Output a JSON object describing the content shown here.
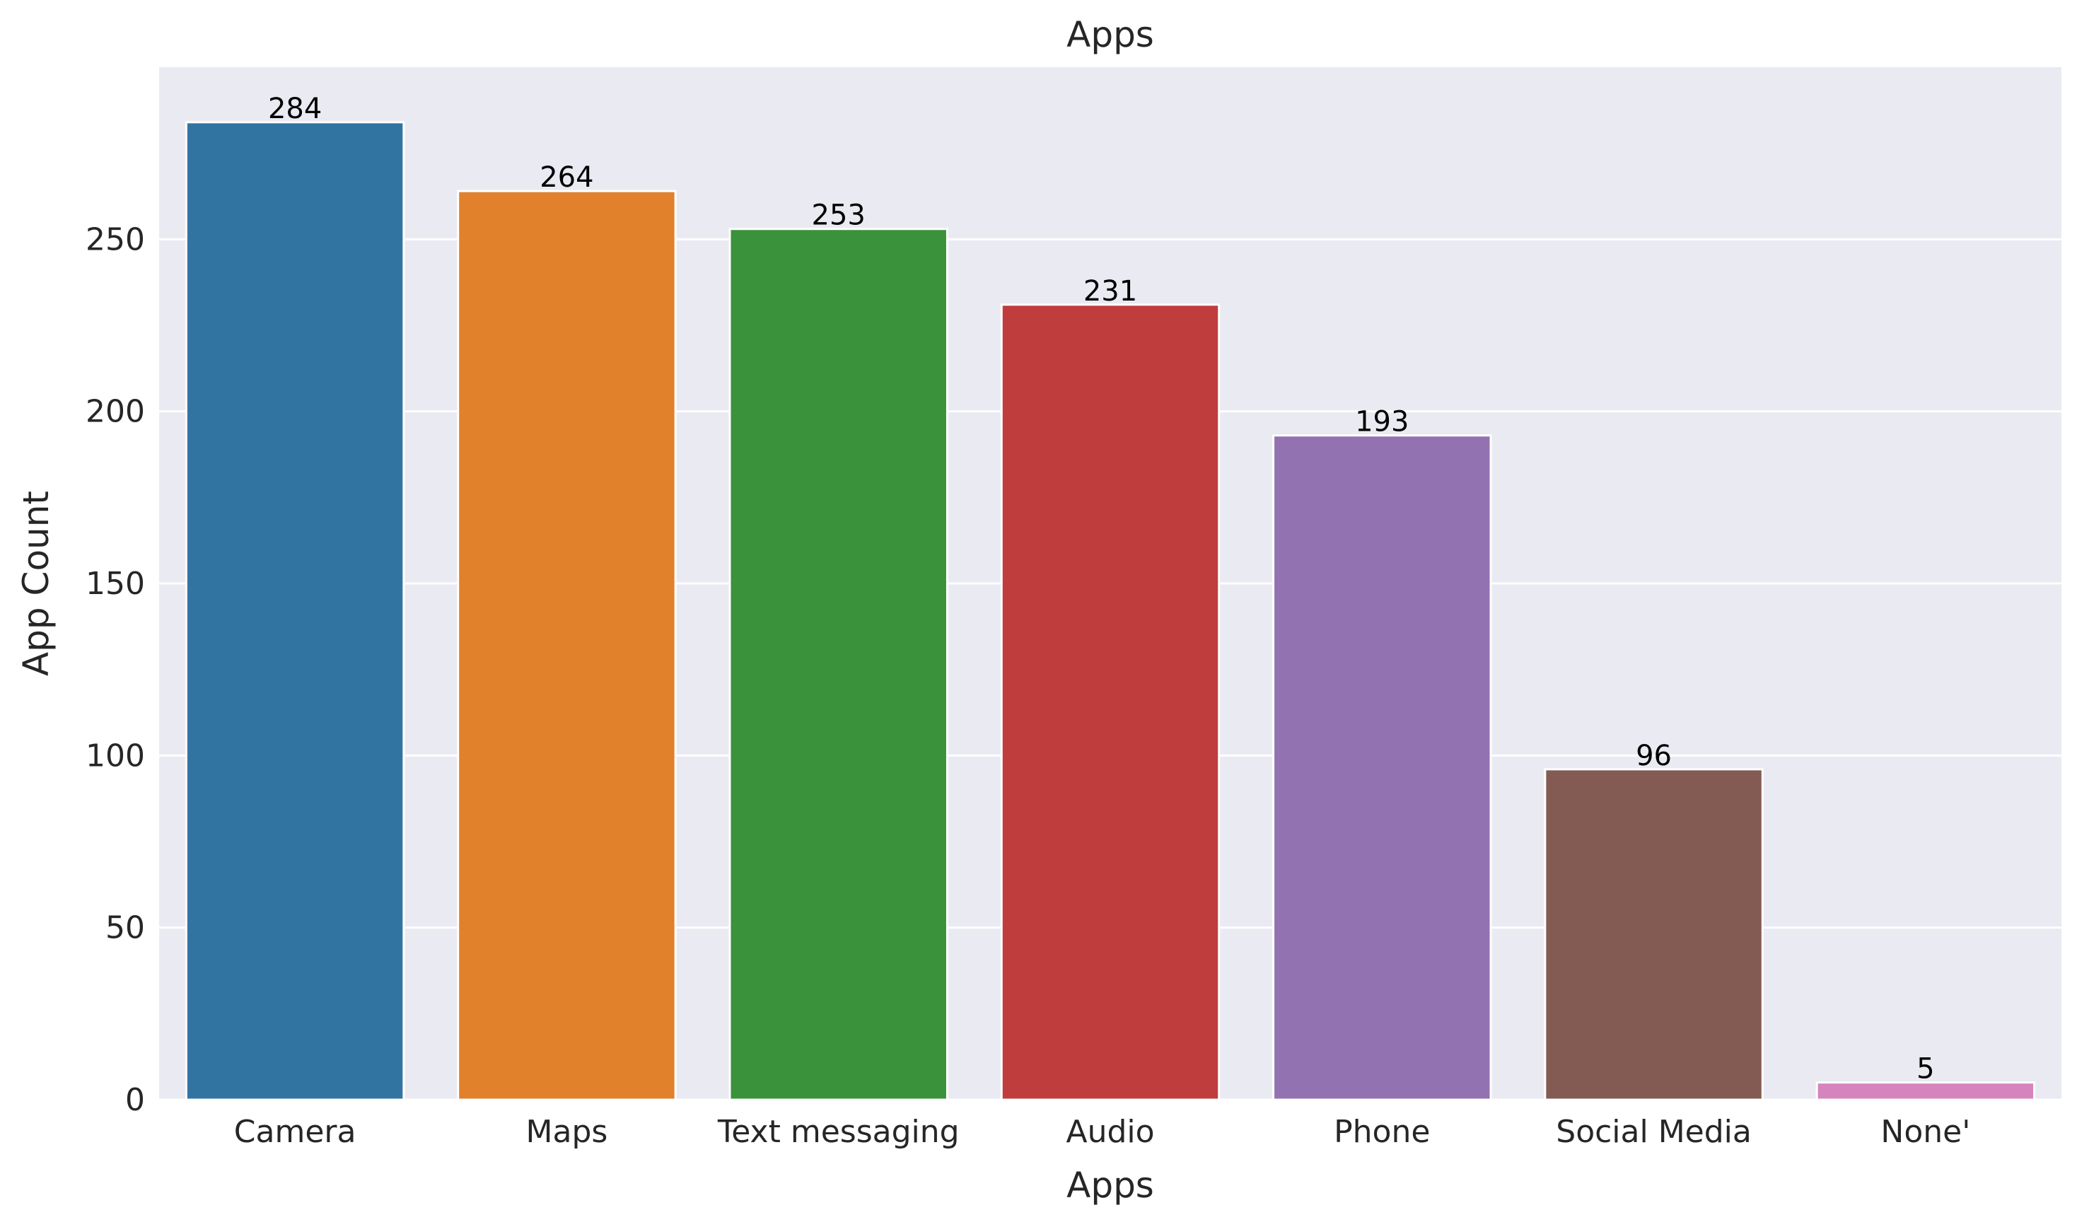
{
  "chart_data": {
    "type": "bar",
    "title": "Apps",
    "xlabel": "Apps",
    "ylabel": "App Count",
    "categories": [
      "Camera",
      "Maps",
      "Text messaging",
      "Audio",
      "Phone",
      "Social Media",
      "None'"
    ],
    "values": [
      284,
      264,
      253,
      231,
      193,
      96,
      5
    ],
    "data_labels": [
      "284",
      "264",
      "253",
      "231",
      "193",
      "96",
      "5"
    ],
    "colors": [
      "#3274a1",
      "#e1812c",
      "#3a923a",
      "#c03d3e",
      "#9372b2",
      "#845b53",
      "#d684bd"
    ],
    "ylim": [
      0,
      300
    ],
    "yticks": [
      0,
      50,
      100,
      150,
      200,
      250
    ],
    "ytick_labels": [
      "0",
      "50",
      "100",
      "150",
      "200",
      "250"
    ],
    "grid": true,
    "background_color": "#eaeaf2"
  }
}
